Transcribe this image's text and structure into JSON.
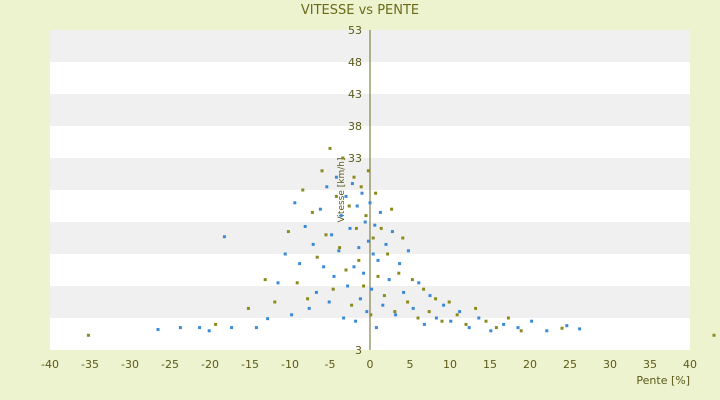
{
  "chart_data": {
    "type": "scatter",
    "title": "VITESSE vs PENTE",
    "xlabel": "Pente [%]",
    "ylabel": "Vitesse [km/h]",
    "xlim": [
      -40,
      40
    ],
    "ylim": [
      3,
      53
    ],
    "x_ticks": [
      -40,
      -35,
      -30,
      -25,
      -20,
      -15,
      -10,
      -5,
      0,
      5,
      10,
      15,
      20,
      25,
      30,
      35,
      40
    ],
    "y_ticks": [
      3,
      8,
      13,
      18,
      23,
      28,
      33,
      38,
      43,
      48,
      53
    ],
    "y_tick_labels": [
      "3",
      "",
      "",
      "",
      "",
      "",
      "33",
      "38",
      "43",
      "48",
      "53"
    ],
    "grid": "horizontal alternating bands",
    "legend": "none",
    "colors": {
      "background": "#eef3cf",
      "band_light": "#ffffff",
      "band_dark": "#f0f0f0",
      "series_blue": "#3a8ad8",
      "series_olive": "#8a8a1e",
      "axis": "#6b6b2a"
    },
    "series": [
      {
        "color": "#3a8ad8",
        "points": [
          [
            -26.5,
            6.2
          ],
          [
            -23.7,
            6.5
          ],
          [
            -21.3,
            6.5
          ],
          [
            -20.1,
            6.0
          ],
          [
            -18.2,
            20.7
          ],
          [
            -17.3,
            6.5
          ],
          [
            -14.2,
            6.5
          ],
          [
            -12.8,
            7.9
          ],
          [
            -11.5,
            13.5
          ],
          [
            -10.6,
            18.0
          ],
          [
            -9.8,
            8.5
          ],
          [
            -9.4,
            26.0
          ],
          [
            -8.8,
            16.5
          ],
          [
            -8.1,
            22.3
          ],
          [
            -7.6,
            9.5
          ],
          [
            -7.1,
            19.5
          ],
          [
            -6.7,
            12.0
          ],
          [
            -6.2,
            25.0
          ],
          [
            -5.8,
            16.0
          ],
          [
            -5.4,
            28.5
          ],
          [
            -5.1,
            10.5
          ],
          [
            -4.8,
            21.0
          ],
          [
            -4.5,
            14.5
          ],
          [
            -4.2,
            30.0
          ],
          [
            -3.9,
            18.5
          ],
          [
            -3.6,
            24.0
          ],
          [
            -3.3,
            8.0
          ],
          [
            -3.0,
            27.0
          ],
          [
            -2.8,
            13.0
          ],
          [
            -2.5,
            22.0
          ],
          [
            -2.2,
            29.0
          ],
          [
            -2.0,
            16.0
          ],
          [
            -1.8,
            7.5
          ],
          [
            -1.6,
            25.5
          ],
          [
            -1.4,
            19.0
          ],
          [
            -1.2,
            11.0
          ],
          [
            -1.0,
            27.5
          ],
          [
            -0.8,
            15.0
          ],
          [
            -0.6,
            23.0
          ],
          [
            -0.4,
            9.0
          ],
          [
            -0.2,
            20.0
          ],
          [
            0.0,
            26.0
          ],
          [
            0.2,
            12.5
          ],
          [
            0.4,
            18.0
          ],
          [
            0.6,
            22.5
          ],
          [
            0.8,
            6.5
          ],
          [
            1.0,
            17.0
          ],
          [
            1.3,
            24.5
          ],
          [
            1.6,
            10.0
          ],
          [
            2.0,
            19.5
          ],
          [
            2.4,
            14.0
          ],
          [
            2.8,
            21.5
          ],
          [
            3.2,
            8.5
          ],
          [
            3.7,
            16.5
          ],
          [
            4.2,
            12.0
          ],
          [
            4.8,
            18.5
          ],
          [
            5.4,
            9.5
          ],
          [
            6.1,
            13.5
          ],
          [
            6.8,
            7.0
          ],
          [
            7.5,
            11.5
          ],
          [
            8.3,
            8.0
          ],
          [
            9.2,
            10.0
          ],
          [
            10.1,
            7.5
          ],
          [
            11.2,
            9.0
          ],
          [
            12.4,
            6.5
          ],
          [
            13.6,
            8.0
          ],
          [
            15.1,
            6.0
          ],
          [
            16.7,
            7.0
          ],
          [
            18.5,
            6.5
          ],
          [
            20.2,
            7.5
          ],
          [
            22.1,
            6.0
          ],
          [
            24.6,
            6.8
          ],
          [
            26.2,
            6.3
          ]
        ]
      },
      {
        "color": "#8a8a1e",
        "points": [
          [
            -35.2,
            5.3
          ],
          [
            -19.3,
            7.0
          ],
          [
            -15.2,
            9.5
          ],
          [
            -13.1,
            14.0
          ],
          [
            -11.9,
            10.5
          ],
          [
            -10.2,
            21.5
          ],
          [
            -9.1,
            13.5
          ],
          [
            -8.4,
            28.0
          ],
          [
            -7.8,
            11.0
          ],
          [
            -7.2,
            24.5
          ],
          [
            -6.6,
            17.5
          ],
          [
            -6.0,
            31.0
          ],
          [
            -5.5,
            21.0
          ],
          [
            -5.0,
            34.5
          ],
          [
            -4.6,
            12.5
          ],
          [
            -4.2,
            27.0
          ],
          [
            -3.8,
            19.0
          ],
          [
            -3.4,
            33.0
          ],
          [
            -3.0,
            15.5
          ],
          [
            -2.6,
            25.5
          ],
          [
            -2.3,
            10.0
          ],
          [
            -2.0,
            30.0
          ],
          [
            -1.7,
            22.0
          ],
          [
            -1.4,
            17.0
          ],
          [
            -1.1,
            28.5
          ],
          [
            -0.8,
            13.0
          ],
          [
            -0.5,
            24.0
          ],
          [
            -0.2,
            31.0
          ],
          [
            0.1,
            8.5
          ],
          [
            0.4,
            20.5
          ],
          [
            0.7,
            27.5
          ],
          [
            1.0,
            14.5
          ],
          [
            1.4,
            22.0
          ],
          [
            1.8,
            11.5
          ],
          [
            2.2,
            18.0
          ],
          [
            2.7,
            25.0
          ],
          [
            3.1,
            9.0
          ],
          [
            3.6,
            15.0
          ],
          [
            4.1,
            20.5
          ],
          [
            4.7,
            10.5
          ],
          [
            5.3,
            14.0
          ],
          [
            6.0,
            8.0
          ],
          [
            6.7,
            12.5
          ],
          [
            7.4,
            9.0
          ],
          [
            8.2,
            11.0
          ],
          [
            9.0,
            7.5
          ],
          [
            9.9,
            10.5
          ],
          [
            10.9,
            8.5
          ],
          [
            12.0,
            7.0
          ],
          [
            13.2,
            9.5
          ],
          [
            14.5,
            7.5
          ],
          [
            15.8,
            6.5
          ],
          [
            17.3,
            8.0
          ],
          [
            18.9,
            6.0
          ],
          [
            24.0,
            6.4
          ],
          [
            43.0,
            5.3
          ]
        ]
      }
    ]
  }
}
